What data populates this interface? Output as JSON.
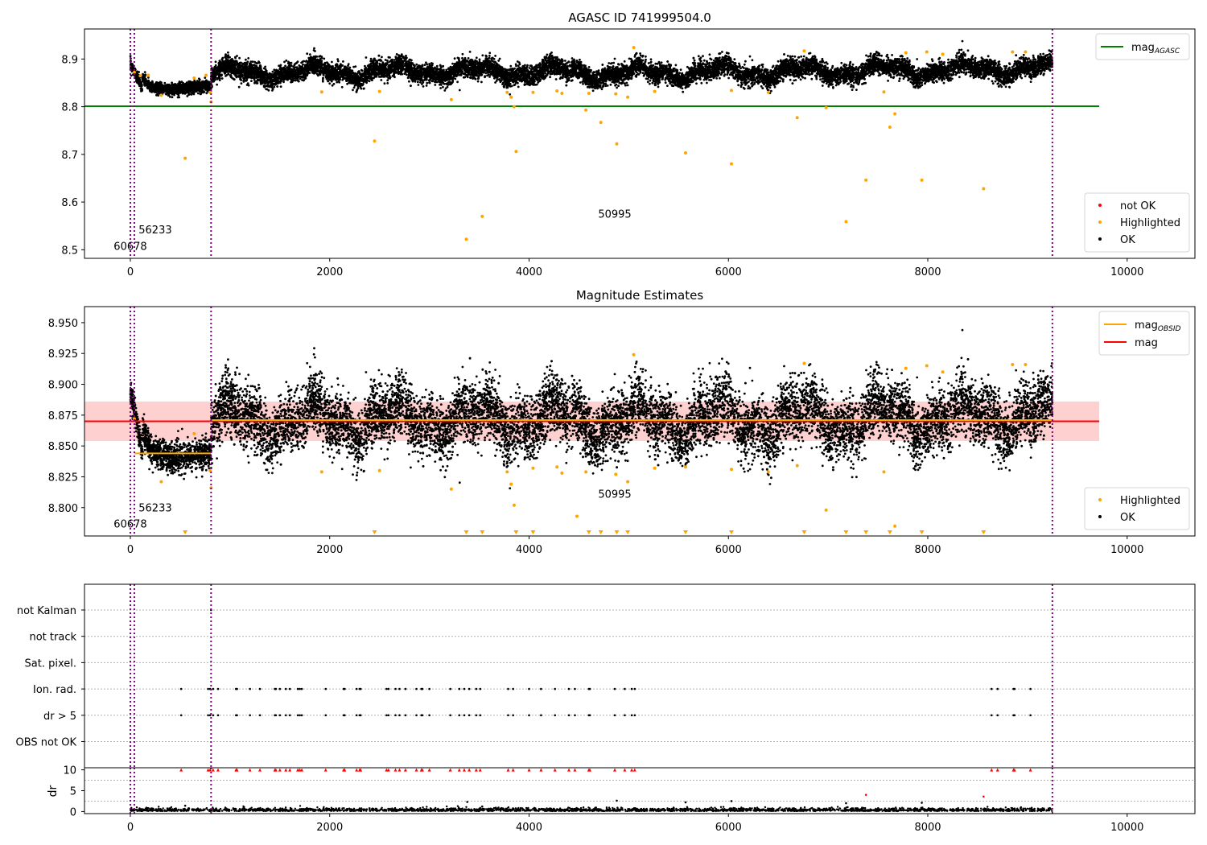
{
  "figure": {
    "background": "#ffffff"
  },
  "chart_data": [
    {
      "type": "scatter",
      "title": "AGASC ID 741999504.0",
      "xlim": [
        -460,
        10680
      ],
      "ylim": [
        8.482,
        8.963
      ],
      "xticks": [
        0,
        2000,
        4000,
        6000,
        8000,
        10000
      ],
      "yticks": [
        8.5,
        8.6,
        8.7,
        8.8,
        8.9
      ],
      "ytick_labels": [
        "8.5",
        "8.6",
        "8.7",
        "8.8",
        "8.9"
      ],
      "vlines": [
        0,
        40,
        810,
        9250
      ],
      "hlines": [
        {
          "name": "mag_AGASC",
          "y": 8.801,
          "x0": -460,
          "x1": 9720,
          "color": "#008000"
        }
      ],
      "legend_top": [
        {
          "label": "mag",
          "sub": "AGASC",
          "color": "#008000"
        }
      ],
      "legend_bottom": [
        {
          "label": "not OK",
          "color": "#ff0000"
        },
        {
          "label": "Highlighted",
          "color": "#ffa500"
        },
        {
          "label": "OK",
          "color": "#000000"
        }
      ],
      "annotations": [
        {
          "text": "60678",
          "x": 0,
          "y": 8.5
        },
        {
          "text": "56233",
          "x": 250,
          "y": 8.534
        },
        {
          "text": "50995",
          "x": 4860,
          "y": 8.567
        }
      ],
      "series": [
        {
          "name": "OK",
          "color": "#000000",
          "segments": [
            {
              "x0": 0,
              "x1": 810,
              "y": [
                8.89,
                8.84,
                8.835,
                8.84,
                8.845
              ],
              "spread": 0.012
            },
            {
              "x0": 810,
              "x1": 9250,
              "y": [
                8.87,
                8.875,
                8.87,
                8.875,
                8.88
              ],
              "spread": 0.02
            }
          ]
        },
        {
          "name": "Highlighted",
          "color": "#ffa500",
          "points": [
            [
              40,
              8.872
            ],
            [
              100,
              8.865
            ],
            [
              180,
              8.866
            ],
            [
              310,
              8.824
            ],
            [
              550,
              8.692
            ],
            [
              640,
              8.86
            ],
            [
              760,
              8.866
            ],
            [
              800,
              8.83
            ],
            [
              810,
              8.81
            ],
            [
              1920,
              8.831
            ],
            [
              2450,
              8.728
            ],
            [
              2500,
              8.832
            ],
            [
              3220,
              8.815
            ],
            [
              3370,
              8.522
            ],
            [
              3530,
              8.57
            ],
            [
              3780,
              8.83
            ],
            [
              3820,
              8.82
            ],
            [
              3850,
              8.8
            ],
            [
              3870,
              8.706
            ],
            [
              4040,
              8.83
            ],
            [
              4280,
              8.833
            ],
            [
              4330,
              8.828
            ],
            [
              4570,
              8.793
            ],
            [
              4600,
              8.828
            ],
            [
              4720,
              8.767
            ],
            [
              4870,
              8.827
            ],
            [
              4990,
              8.82
            ],
            [
              4880,
              8.722
            ],
            [
              5050,
              8.924
            ],
            [
              5570,
              8.703
            ],
            [
              5260,
              8.832
            ],
            [
              6030,
              8.834
            ],
            [
              6030,
              8.68
            ],
            [
              6400,
              8.83
            ],
            [
              6690,
              8.777
            ],
            [
              6760,
              8.917
            ],
            [
              6980,
              8.798
            ],
            [
              7180,
              8.559
            ],
            [
              7380,
              8.646
            ],
            [
              7560,
              8.831
            ],
            [
              7620,
              8.757
            ],
            [
              7670,
              8.785
            ],
            [
              7780,
              8.913
            ],
            [
              7940,
              8.646
            ],
            [
              7990,
              8.915
            ],
            [
              8150,
              8.91
            ],
            [
              8560,
              8.628
            ],
            [
              8850,
              8.915
            ],
            [
              8980,
              8.915
            ]
          ]
        }
      ]
    },
    {
      "type": "scatter",
      "title": "Magnitude Estimates",
      "xlim": [
        -460,
        10680
      ],
      "ylim": [
        8.777,
        8.963
      ],
      "xticks": [
        0,
        2000,
        4000,
        6000,
        8000,
        10000
      ],
      "yticks": [
        8.8,
        8.825,
        8.85,
        8.875,
        8.9,
        8.925,
        8.95
      ],
      "ytick_labels": [
        "8.800",
        "8.825",
        "8.850",
        "8.875",
        "8.900",
        "8.925",
        "8.950"
      ],
      "vlines": [
        0,
        40,
        810,
        9250
      ],
      "band": {
        "x0": -460,
        "x1": 9720,
        "y0": 8.854,
        "y1": 8.886,
        "color": "#ffc0c0"
      },
      "hlines": [
        {
          "name": "mag",
          "y": 8.87,
          "x0": -460,
          "x1": 9720,
          "color": "#ff0000"
        },
        {
          "name": "mag_OBSID_1",
          "y": 8.844,
          "x0": 40,
          "x1": 810,
          "color": "#ffa500"
        },
        {
          "name": "mag_OBSID_2",
          "y": 8.871,
          "x0": 810,
          "x1": 9250,
          "color": "#ffa500"
        }
      ],
      "legend_top": [
        {
          "label": "mag",
          "sub": "OBSID",
          "color": "#ffa500"
        },
        {
          "label": "mag",
          "sub": "",
          "color": "#ff0000"
        }
      ],
      "legend_bottom": [
        {
          "label": "Highlighted",
          "color": "#ffa500"
        },
        {
          "label": "OK",
          "color": "#000000"
        }
      ],
      "annotations": [
        {
          "text": "60678",
          "x": 0,
          "y": 8.784
        },
        {
          "text": "56233",
          "x": 250,
          "y": 8.797
        },
        {
          "text": "50995",
          "x": 4860,
          "y": 8.808
        }
      ],
      "triangles_x": [
        550,
        2450,
        3370,
        3530,
        3870,
        4040,
        4600,
        4720,
        4880,
        4990,
        5570,
        6030,
        6760,
        7180,
        7380,
        7620,
        7940,
        8560
      ],
      "series": [
        {
          "name": "OK",
          "color": "#000000",
          "segments": [
            {
              "x0": 0,
              "x1": 810,
              "y": [
                8.895,
                8.845,
                8.84,
                8.842,
                8.845
              ],
              "spread": 0.012
            },
            {
              "x0": 810,
              "x1": 9250,
              "y": [
                8.87,
                8.872,
                8.87,
                8.872,
                8.875
              ],
              "spread": 0.025
            }
          ]
        },
        {
          "name": "Highlighted",
          "color": "#ffa500",
          "points": [
            [
              40,
              8.872
            ],
            [
              310,
              8.821
            ],
            [
              640,
              8.86
            ],
            [
              800,
              8.83
            ],
            [
              810,
              8.816
            ],
            [
              1920,
              8.829
            ],
            [
              2500,
              8.83
            ],
            [
              3220,
              8.815
            ],
            [
              3780,
              8.829
            ],
            [
              3820,
              8.819
            ],
            [
              3850,
              8.802
            ],
            [
              4040,
              8.832
            ],
            [
              4280,
              8.833
            ],
            [
              4330,
              8.828
            ],
            [
              4480,
              8.793
            ],
            [
              4570,
              8.829
            ],
            [
              4870,
              8.827
            ],
            [
              4990,
              8.821
            ],
            [
              5050,
              8.924
            ],
            [
              5260,
              8.832
            ],
            [
              5570,
              8.833
            ],
            [
              6030,
              8.831
            ],
            [
              6400,
              8.829
            ],
            [
              6690,
              8.834
            ],
            [
              6760,
              8.917
            ],
            [
              6980,
              8.798
            ],
            [
              7560,
              8.829
            ],
            [
              7670,
              8.785
            ],
            [
              7780,
              8.913
            ],
            [
              7990,
              8.915
            ],
            [
              8150,
              8.91
            ],
            [
              8850,
              8.916
            ],
            [
              8980,
              8.916
            ]
          ]
        }
      ]
    },
    {
      "type": "scatter",
      "title": "",
      "xlim": [
        -460,
        10680
      ],
      "category_axis": {
        "labels": [
          "not Kalman",
          "not track",
          "Sat. pixel.",
          "Ion. rad.",
          "dr > 5",
          "OBS not OK"
        ]
      },
      "flag_x": [
        510,
        780,
        800,
        830,
        880,
        1060,
        1070,
        1200,
        1300,
        1450,
        1460,
        1500,
        1560,
        1600,
        1680,
        1700,
        1720,
        1960,
        2140,
        2150,
        2270,
        2300,
        2310,
        2570,
        2590,
        2660,
        2700,
        2760,
        2870,
        2920,
        2930,
        3000,
        3210,
        3300,
        3350,
        3400,
        3470,
        3510,
        3790,
        3840,
        4000,
        4120,
        4260,
        4400,
        4460,
        4600,
        4610,
        4860,
        4960,
        5030,
        5060,
        8640,
        8700,
        8860,
        8870,
        9030
      ],
      "dr_axis": {
        "ylim": [
          -0.5,
          10.5
        ],
        "yticks": [
          0,
          5,
          10
        ],
        "ylabel": "dr"
      },
      "vlines": [
        0,
        40,
        810,
        9250
      ],
      "series": [
        {
          "name": "dr",
          "color": "#000000"
        },
        {
          "name": "dr > 5",
          "color": "#ff0000"
        }
      ]
    }
  ]
}
